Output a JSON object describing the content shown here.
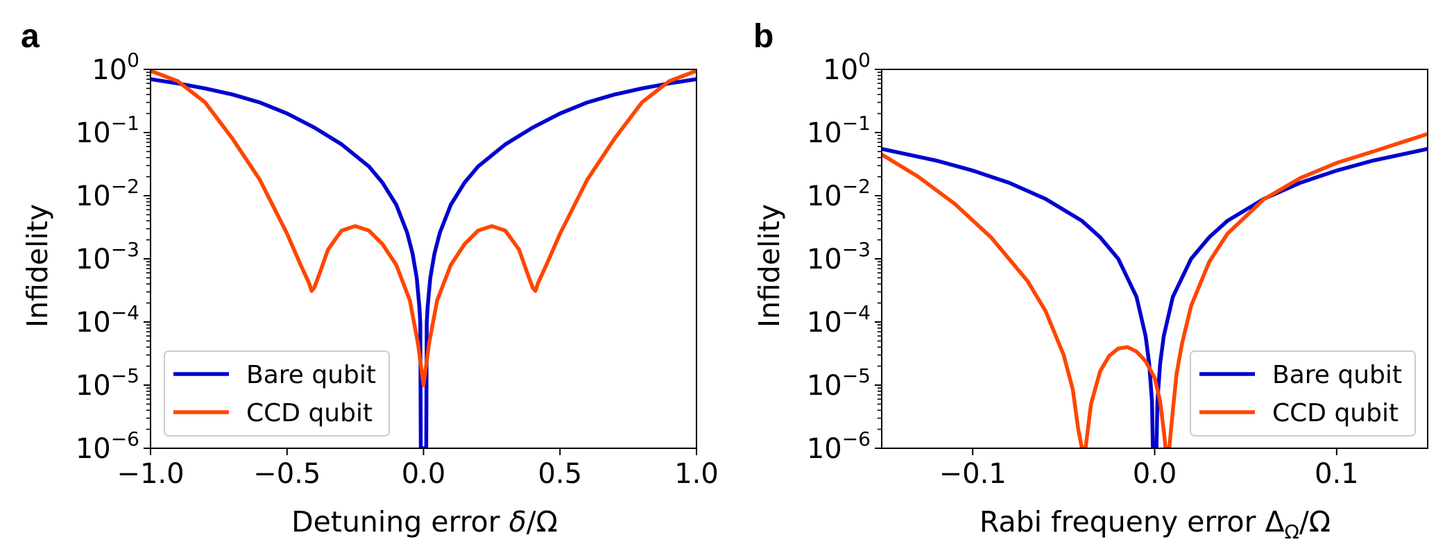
{
  "chart_data": [
    {
      "panel": "a",
      "type": "line",
      "xlabel": "Detuning error δ/Ω",
      "ylabel": "Infidelity",
      "xlim": [
        -1.0,
        1.0
      ],
      "ylim": [
        1e-06,
        1
      ],
      "yscale": "log",
      "xticks": [
        "−1.0",
        "−0.5",
        "0.0",
        "0.5",
        "1.0"
      ],
      "xtick_values": [
        -1.0,
        -0.5,
        0.0,
        0.5,
        1.0
      ],
      "yticks": [
        "10^0",
        "10^−1",
        "10^−2",
        "10^−3",
        "10^−4",
        "10^−5",
        "10^−6"
      ],
      "ytick_exponents": [
        0,
        -1,
        -2,
        -3,
        -4,
        -5,
        -6
      ],
      "legend_position": "lower-left",
      "series": [
        {
          "name": "Bare qubit",
          "color": "#0000cc",
          "x": [
            -1.0,
            -0.9,
            -0.8,
            -0.7,
            -0.6,
            -0.5,
            -0.4,
            -0.3,
            -0.2,
            -0.15,
            -0.1,
            -0.06,
            -0.04,
            -0.025,
            -0.02,
            -0.015,
            -0.012,
            -0.01,
            0.01,
            0.012,
            0.015,
            0.02,
            0.025,
            0.04,
            0.06,
            0.1,
            0.15,
            0.2,
            0.3,
            0.4,
            0.5,
            0.6,
            0.7,
            0.8,
            0.9,
            1.0
          ],
          "y": [
            0.7,
            0.6,
            0.5,
            0.4,
            0.3,
            0.2,
            0.12,
            0.065,
            0.029,
            0.016,
            0.0072,
            0.0026,
            0.0012,
            0.0005,
            0.0003,
            0.00017,
            0.0001,
            1e-06,
            1e-06,
            0.0001,
            0.00017,
            0.0003,
            0.0005,
            0.0012,
            0.0026,
            0.0072,
            0.016,
            0.029,
            0.065,
            0.12,
            0.2,
            0.3,
            0.4,
            0.5,
            0.6,
            0.7
          ]
        },
        {
          "name": "CCD qubit",
          "color": "#ff4500",
          "x": [
            -1.0,
            -0.9,
            -0.8,
            -0.7,
            -0.6,
            -0.5,
            -0.45,
            -0.42,
            -0.41,
            -0.4,
            -0.38,
            -0.35,
            -0.3,
            -0.25,
            -0.2,
            -0.15,
            -0.1,
            -0.05,
            -0.02,
            0.0,
            0.02,
            0.05,
            0.1,
            0.15,
            0.2,
            0.25,
            0.3,
            0.35,
            0.38,
            0.4,
            0.41,
            0.42,
            0.45,
            0.5,
            0.6,
            0.7,
            0.8,
            0.9,
            1.0
          ],
          "y": [
            0.95,
            0.65,
            0.3,
            0.08,
            0.018,
            0.0025,
            0.0008,
            0.00042,
            0.00031,
            0.00035,
            0.0006,
            0.0014,
            0.0028,
            0.0033,
            0.0028,
            0.0017,
            0.0008,
            0.00022,
            4.5e-05,
            1e-05,
            4.5e-05,
            0.00022,
            0.0008,
            0.0017,
            0.0028,
            0.0033,
            0.0028,
            0.0014,
            0.0006,
            0.00035,
            0.00031,
            0.00042,
            0.0008,
            0.0025,
            0.018,
            0.08,
            0.3,
            0.65,
            0.95
          ]
        }
      ]
    },
    {
      "panel": "b",
      "type": "line",
      "xlabel": "Rabi frequeny error ΔΩ/Ω",
      "ylabel": "Infidelity",
      "xlim": [
        -0.15,
        0.15
      ],
      "ylim": [
        1e-06,
        1
      ],
      "yscale": "log",
      "xticks": [
        "−0.1",
        "0.0",
        "0.1"
      ],
      "xtick_values": [
        -0.1,
        0.0,
        0.1
      ],
      "yticks": [
        "10^0",
        "10^−1",
        "10^−2",
        "10^−3",
        "10^−4",
        "10^−5",
        "10^−6"
      ],
      "ytick_exponents": [
        0,
        -1,
        -2,
        -3,
        -4,
        -5,
        -6
      ],
      "legend_position": "lower-right",
      "series": [
        {
          "name": "Bare qubit",
          "color": "#0000cc",
          "x": [
            -0.15,
            -0.12,
            -0.1,
            -0.08,
            -0.06,
            -0.04,
            -0.03,
            -0.02,
            -0.01,
            -0.005,
            -0.003,
            -0.0015,
            -0.001,
            0.001,
            0.0015,
            0.003,
            0.005,
            0.01,
            0.02,
            0.03,
            0.04,
            0.06,
            0.08,
            0.1,
            0.12,
            0.15
          ],
          "y": [
            0.055,
            0.036,
            0.025,
            0.016,
            0.0089,
            0.004,
            0.0022,
            0.001,
            0.00025,
            6e-05,
            2.2e-05,
            5.5e-06,
            1e-06,
            1e-06,
            5.5e-06,
            2.2e-05,
            6e-05,
            0.00025,
            0.001,
            0.0022,
            0.004,
            0.0089,
            0.016,
            0.025,
            0.036,
            0.055
          ]
        },
        {
          "name": "CCD qubit",
          "color": "#ff4500",
          "x": [
            -0.15,
            -0.13,
            -0.11,
            -0.09,
            -0.07,
            -0.06,
            -0.05,
            -0.045,
            -0.042,
            -0.04,
            -0.038,
            -0.035,
            -0.03,
            -0.025,
            -0.02,
            -0.015,
            -0.01,
            -0.005,
            0.0,
            0.003,
            0.005,
            0.006,
            0.008,
            0.01,
            0.012,
            0.015,
            0.02,
            0.03,
            0.04,
            0.06,
            0.08,
            0.1,
            0.12,
            0.15
          ],
          "y": [
            0.045,
            0.02,
            0.0075,
            0.0022,
            0.00045,
            0.00015,
            3e-05,
            8.5e-06,
            2e-06,
            1e-06,
            1e-06,
            5e-06,
            1.65e-05,
            2.9e-05,
            3.8e-05,
            4e-05,
            3.4e-05,
            2.4e-05,
            1.3e-05,
            5.5e-06,
            1.9e-06,
            1e-06,
            1e-06,
            4e-06,
            1.5e-05,
            4.5e-05,
            0.00018,
            0.0009,
            0.0025,
            0.0088,
            0.019,
            0.033,
            0.05,
            0.095
          ]
        }
      ]
    }
  ],
  "panels": [
    {
      "letter": "a",
      "ylabel": "Infidelity",
      "xlabel_main": "Detuning error ",
      "xlabel_var": "δ",
      "xlabel_tail": "/Ω"
    },
    {
      "letter": "b",
      "ylabel": "Infidelity",
      "xlabel_main": "Rabi frequeny error Δ",
      "xlabel_sub": "Ω",
      "xlabel_tail": "/Ω"
    }
  ]
}
